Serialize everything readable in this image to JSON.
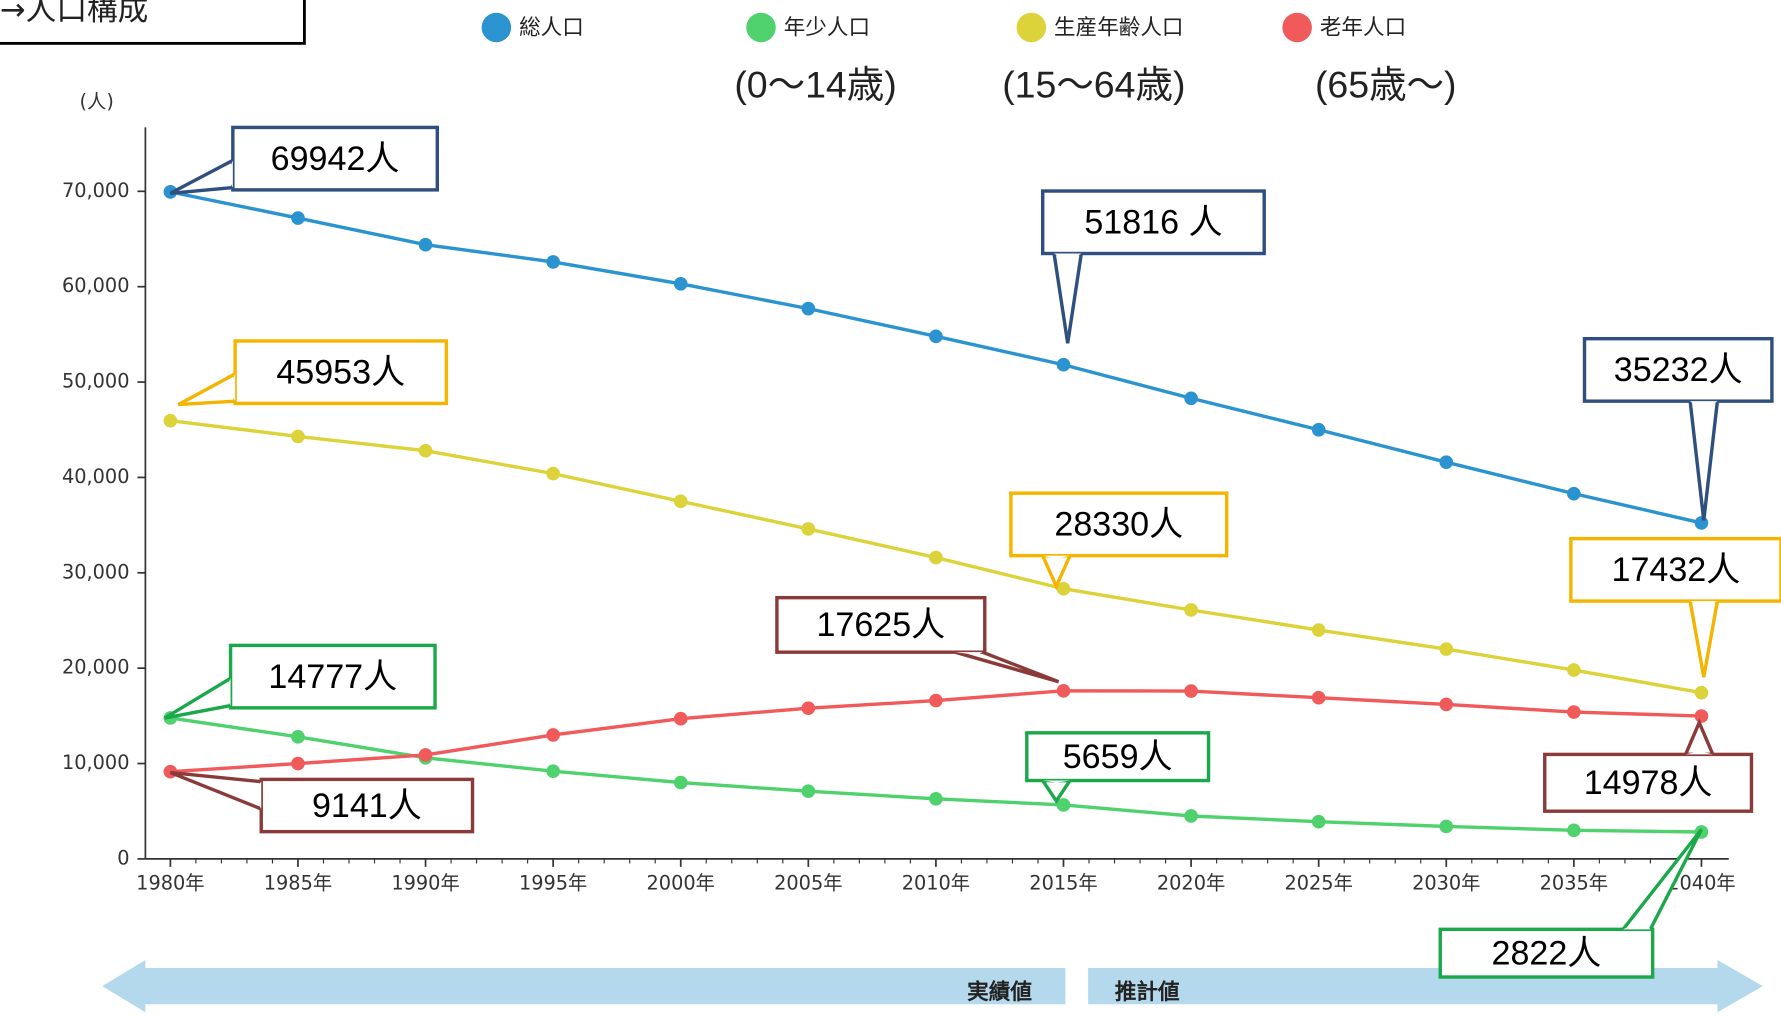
{
  "header": {
    "title": "→人口構成"
  },
  "chart_data": {
    "type": "line",
    "y_label": "(人)",
    "categories": [
      "1980年",
      "1985年",
      "1990年",
      "1995年",
      "2000年",
      "2005年",
      "2010年",
      "2015年",
      "2020年",
      "2025年",
      "2030年",
      "2035年",
      "2040年"
    ],
    "series": [
      {
        "name": "総人口",
        "color": "#2b93d0",
        "label_color": "#2f4f7f",
        "values": [
          69942,
          67200,
          64400,
          62600,
          60300,
          57700,
          54800,
          51816,
          48300,
          45000,
          41600,
          38300,
          35232
        ],
        "value_labels": [
          "69942人",
          null,
          null,
          null,
          null,
          null,
          null,
          "51816 人",
          null,
          null,
          null,
          null,
          "35232人"
        ]
      },
      {
        "name": "年少人口",
        "age_range": "(0～14歳)",
        "color": "#4fd16e",
        "label_color": "#1aa84a",
        "values": [
          14777,
          12800,
          10600,
          9200,
          8000,
          7100,
          6300,
          5659,
          4500,
          3900,
          3400,
          3000,
          2822
        ],
        "value_labels": [
          "14777人",
          null,
          null,
          null,
          null,
          null,
          null,
          "5659人",
          null,
          null,
          null,
          null,
          "2822人"
        ]
      },
      {
        "name": "生産年齢人口",
        "age_range": "(15～64歳)",
        "color": "#dcd23a",
        "label_color": "#f5b400",
        "values": [
          45953,
          44300,
          42800,
          40400,
          37500,
          34600,
          31600,
          28330,
          26100,
          24000,
          22000,
          19800,
          17432
        ],
        "value_labels": [
          "45953人",
          null,
          null,
          null,
          null,
          null,
          null,
          "28330人",
          null,
          null,
          null,
          null,
          "17432人"
        ]
      },
      {
        "name": "老年人口",
        "age_range": "(65歳～)",
        "color": "#f05a5a",
        "label_color": "#8b3a3a",
        "values": [
          9141,
          10000,
          10900,
          13000,
          14700,
          15800,
          16600,
          17625,
          17600,
          16900,
          16200,
          15400,
          14978
        ],
        "value_labels": [
          "9141人",
          null,
          null,
          null,
          null,
          null,
          null,
          "17625人",
          null,
          null,
          null,
          null,
          "14978人"
        ]
      }
    ],
    "ylim": [
      0,
      76700
    ],
    "yticks": [
      0,
      {
        "value": 10000,
        "label": "10,000"
      },
      {
        "value": 20000,
        "label": "20,000"
      },
      {
        "value": 30000,
        "label": "30,000"
      },
      {
        "value": 40000,
        "label": "40,000"
      },
      {
        "value": 50000,
        "label": "50,000"
      },
      {
        "value": 60000,
        "label": "60,000"
      },
      {
        "value": 70000,
        "label": "70,000"
      }
    ],
    "periods": [
      "実績値",
      "推計値"
    ]
  }
}
